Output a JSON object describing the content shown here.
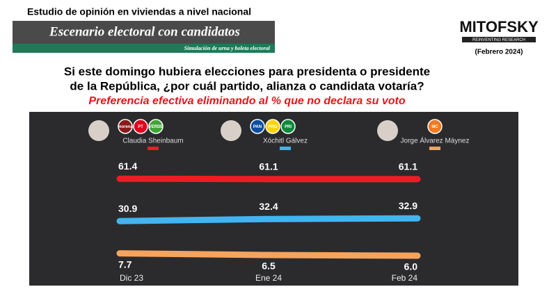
{
  "header": {
    "survey": "Estudio de opinión en viviendas a nivel nacional",
    "banner": "Escenario electoral con candidatos",
    "banner_sub": "Simulación de urna y boleta electoral",
    "brand": "MITOFSKY",
    "brand_tagline": "REINVENTING RESEARCH",
    "date": "(Febrero 2024)"
  },
  "chart_data": {
    "type": "line",
    "title": [
      "Si este domingo hubiera elecciones para presidenta o presidente",
      "de la República, ¿por cuál partido, alianza o candidata votaría?"
    ],
    "subtitle": "Preferencia efectiva eliminando al % que no declara su voto",
    "categories": [
      "Dic 23",
      "Ene 24",
      "Feb 24"
    ],
    "ylim": [
      0,
      70
    ],
    "series": [
      {
        "name": "Claudia Sheinbaum",
        "color": "#ee1c25",
        "values": [
          61.4,
          61.1,
          61.1
        ],
        "value_labels": [
          "61.4",
          "61.1",
          "61.1"
        ],
        "parties": [
          "morena",
          "PT",
          "VERDE"
        ]
      },
      {
        "name": "Xóchitl Gálvez",
        "color": "#42b4f0",
        "values": [
          30.9,
          32.4,
          32.9
        ],
        "value_labels": [
          "30.9",
          "32.4",
          "32.9"
        ],
        "parties": [
          "PAN",
          "PRD",
          "PRI"
        ]
      },
      {
        "name": "Jorge Álvarez Máynez",
        "color": "#f7a35c",
        "values": [
          7.7,
          6.5,
          6.0
        ],
        "value_labels": [
          "7.7",
          "6.5",
          "6.0"
        ],
        "parties": [
          "MC"
        ]
      }
    ]
  }
}
